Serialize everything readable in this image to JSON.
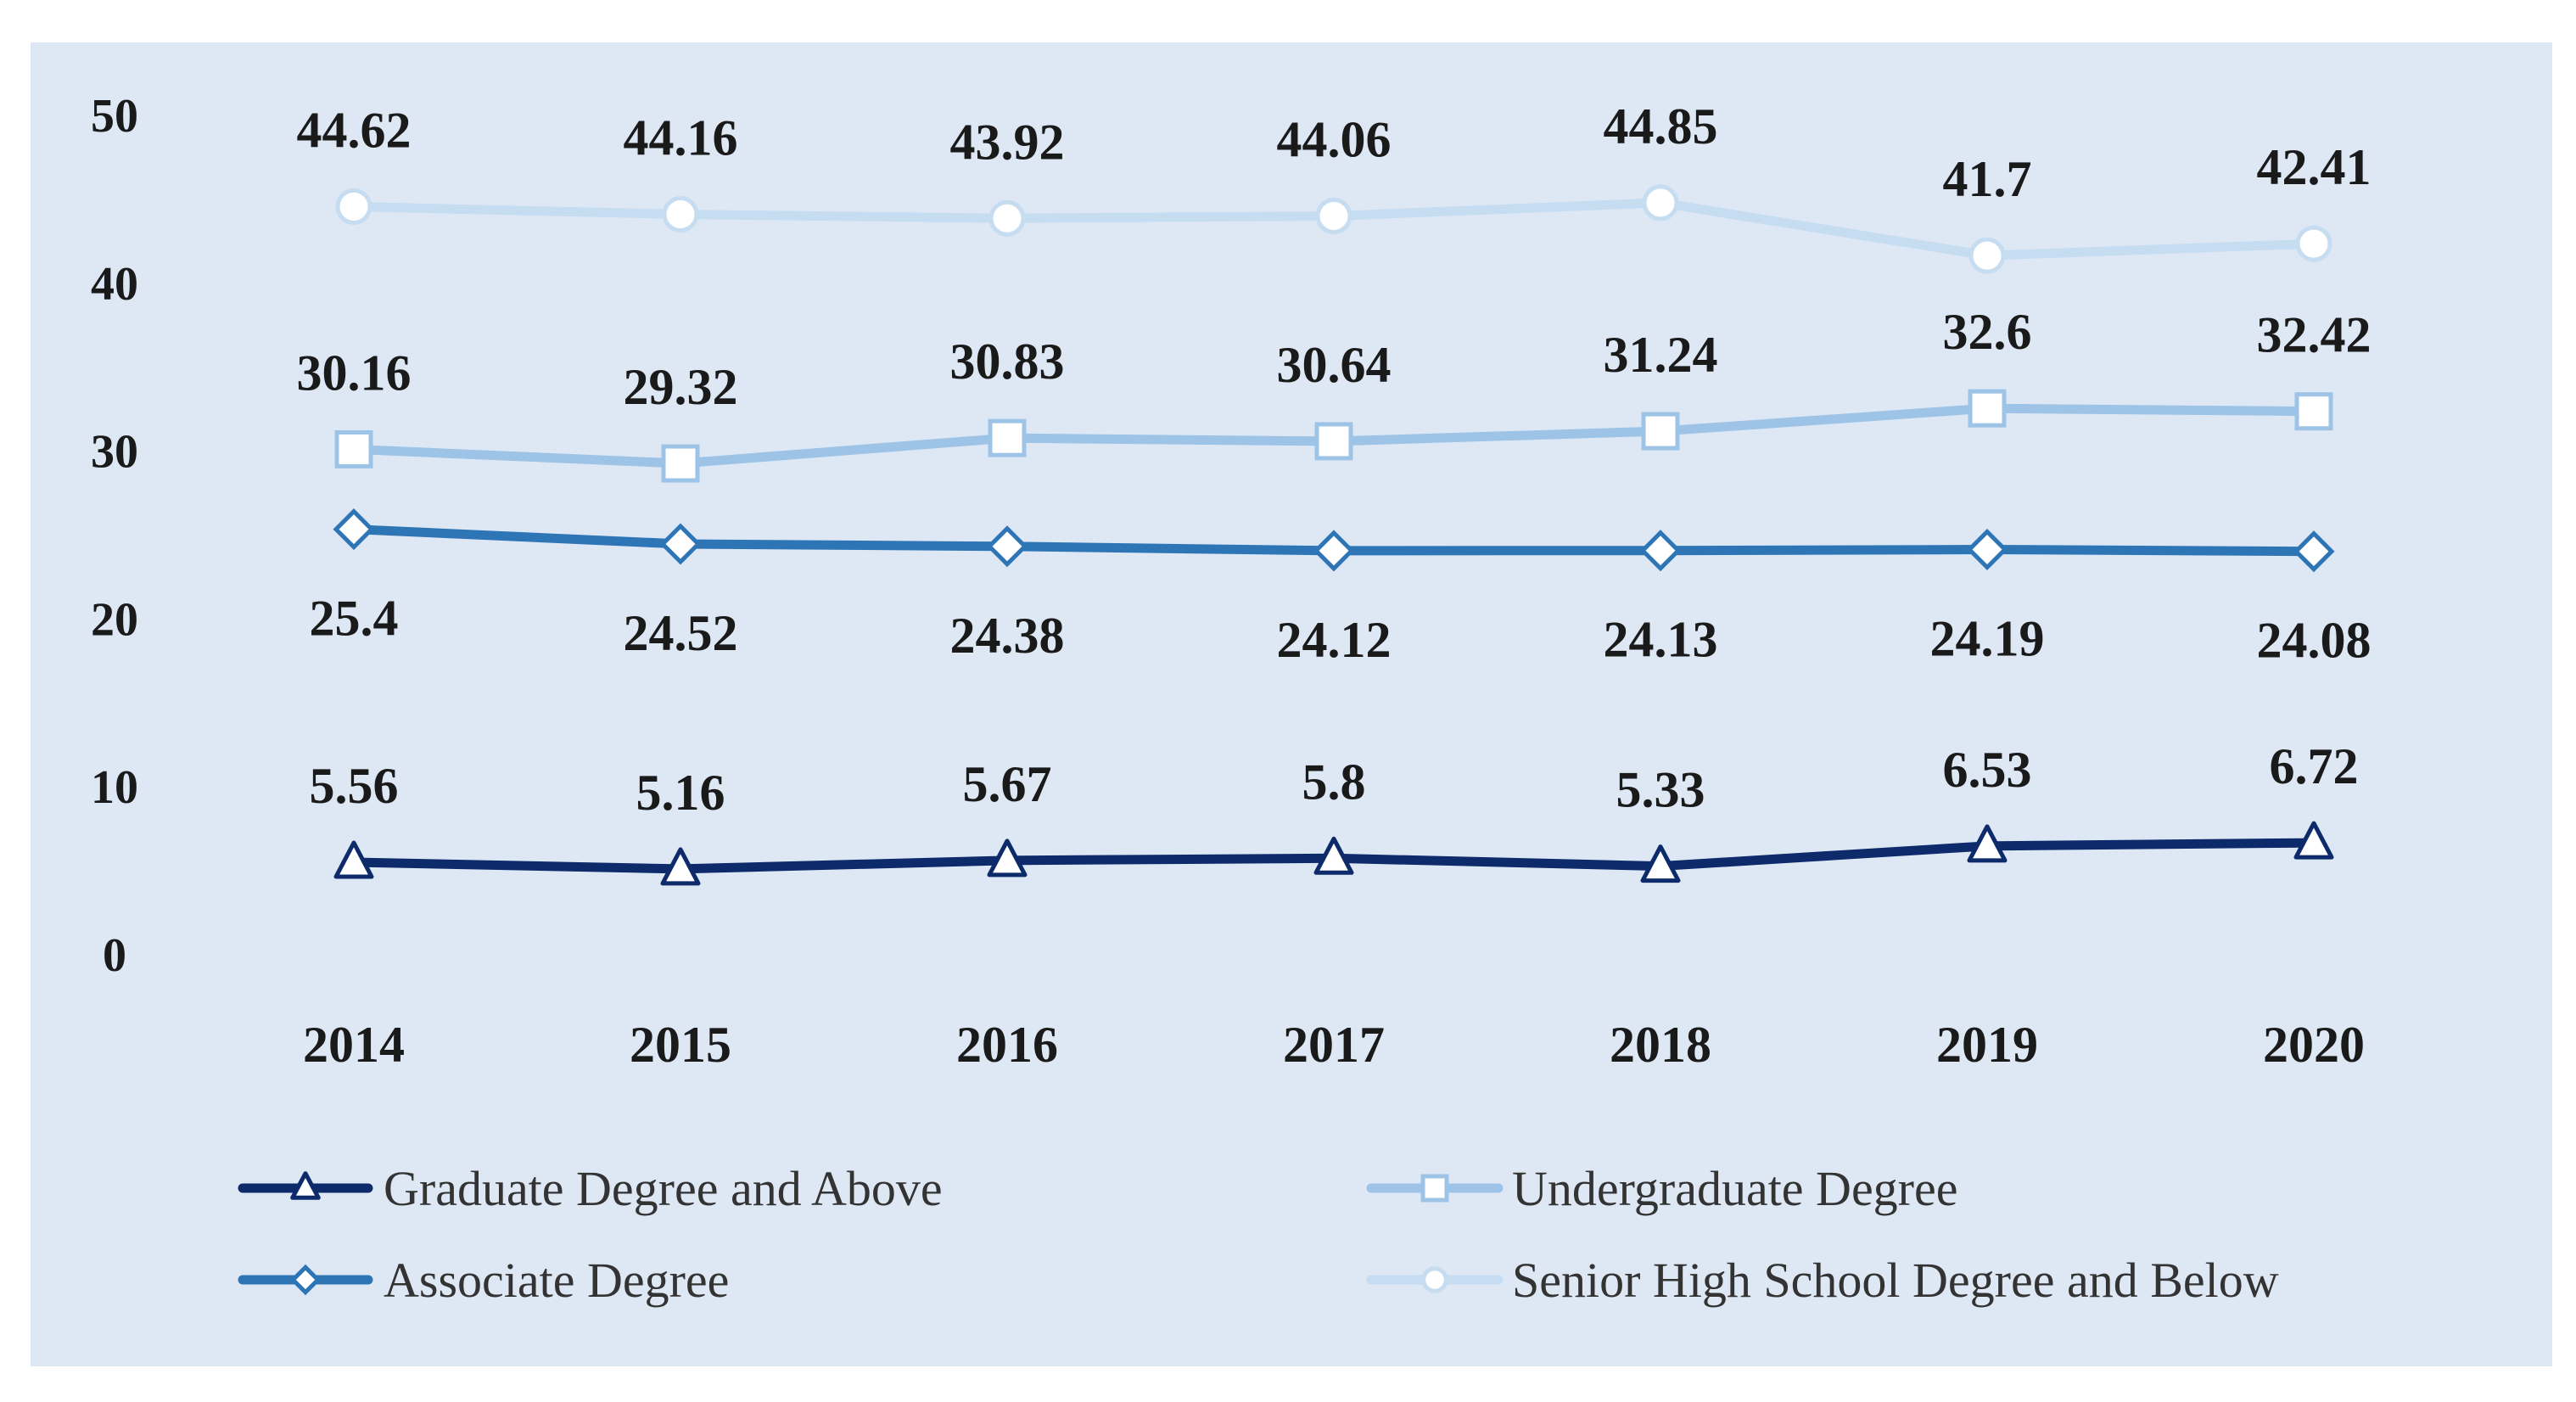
{
  "chart_data": {
    "type": "line",
    "title": "",
    "xlabel": "",
    "ylabel": "",
    "ylim": [
      0,
      50
    ],
    "yticks": [
      0,
      10,
      20,
      30,
      40,
      50
    ],
    "grid": false,
    "legend_position": "bottom",
    "categories": [
      "2014",
      "2015",
      "2016",
      "2017",
      "2018",
      "2019",
      "2020"
    ],
    "series": [
      {
        "name": "Graduate Degree and Above",
        "marker": "triangle",
        "color": "#0d2a6b",
        "label_position": "above",
        "values": [
          5.56,
          5.16,
          5.67,
          5.8,
          5.33,
          6.53,
          6.72
        ],
        "labels": [
          "5.56",
          "5.16",
          "5.67",
          "5.8",
          "5.33",
          "6.53",
          "6.72"
        ]
      },
      {
        "name": "Undergraduate Degree",
        "marker": "square",
        "color": "#9dc3e6",
        "label_position": "above",
        "values": [
          30.16,
          29.32,
          30.83,
          30.64,
          31.24,
          32.6,
          32.42
        ],
        "labels": [
          "30.16",
          "29.32",
          "30.83",
          "30.64",
          "31.24",
          "32.6",
          "32.42"
        ]
      },
      {
        "name": "Associate Degree",
        "marker": "diamond",
        "color": "#2e75b6",
        "label_position": "below",
        "values": [
          25.4,
          24.52,
          24.38,
          24.12,
          24.13,
          24.19,
          24.08
        ],
        "labels": [
          "25.4",
          "24.52",
          "24.38",
          "24.12",
          "24.13",
          "24.19",
          "24.08"
        ]
      },
      {
        "name": "Senior High School Degree and Below",
        "marker": "circle",
        "color": "#c5dcf1",
        "label_position": "above",
        "values": [
          44.62,
          44.16,
          43.92,
          44.06,
          44.85,
          41.7,
          42.41
        ],
        "labels": [
          "44.62",
          "44.16",
          "43.92",
          "44.06",
          "44.85",
          "41.7",
          "42.41"
        ]
      }
    ],
    "colors": {
      "plot_background": "#dee8f5",
      "page_background": "#ffffff",
      "marker_fill": "#ffffff"
    }
  }
}
